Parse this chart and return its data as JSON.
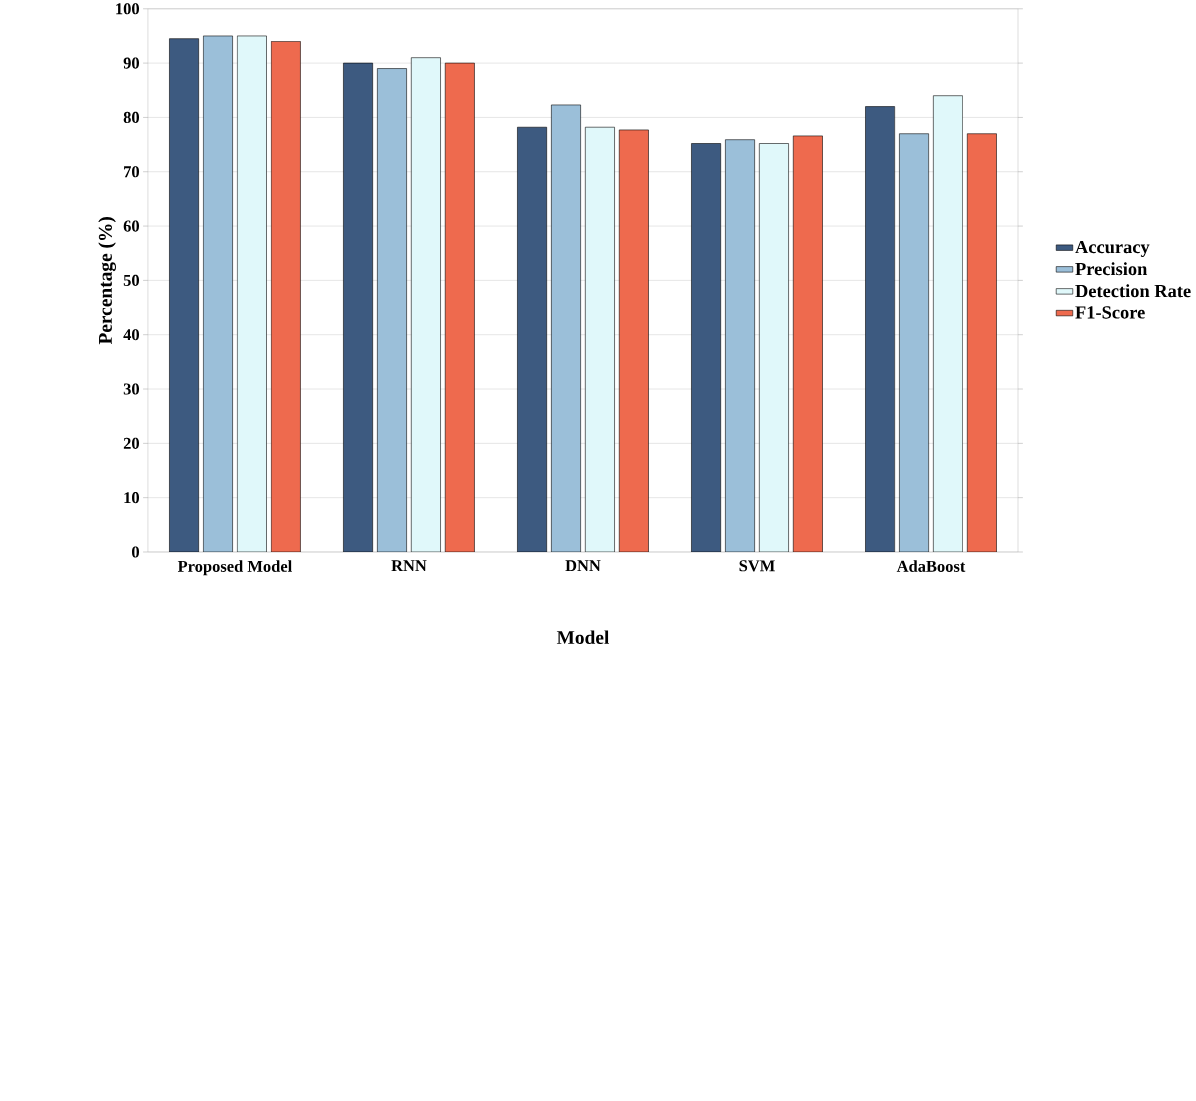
{
  "chart_data": {
    "type": "bar",
    "xlabel": "Model",
    "ylabel": "Percentage (%)",
    "categories": [
      "Proposed Model",
      "RNN",
      "DNN",
      "SVM",
      "AdaBoost"
    ],
    "series": [
      {
        "name": "Accuracy",
        "color": "#3d5a80",
        "values": [
          94.5,
          90,
          78.2,
          75.2,
          82
        ]
      },
      {
        "name": "Precision",
        "color": "#9bbfd9",
        "values": [
          95,
          89,
          82.3,
          75.9,
          77
        ]
      },
      {
        "name": "Detection Rate",
        "color": "#e0f8fa",
        "values": [
          95,
          91,
          78.2,
          75.2,
          84
        ]
      },
      {
        "name": "F1-Score",
        "color": "#ee6a4e",
        "values": [
          94,
          90,
          77.7,
          76.6,
          77
        ]
      }
    ],
    "ylim": [
      0,
      100
    ],
    "yticks": [
      0,
      10,
      20,
      30,
      40,
      50,
      60,
      70,
      80,
      90,
      100
    ],
    "grid": "y",
    "legend": "right"
  }
}
